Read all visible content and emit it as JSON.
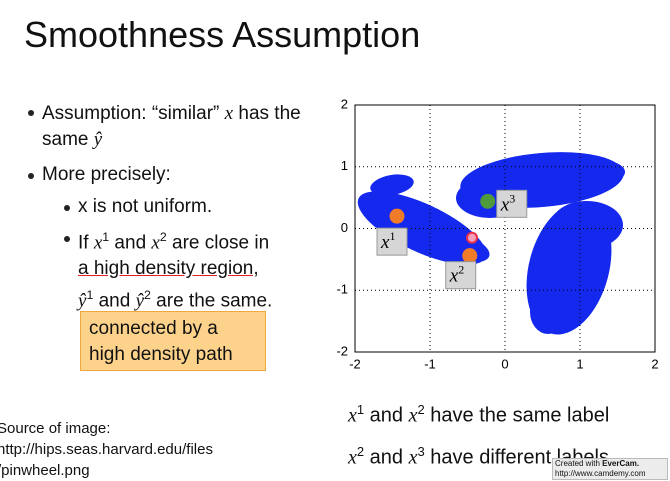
{
  "title": "Smoothness Assumption",
  "bullets": [
    [
      "Assumption: “similar” ",
      "x",
      " has the same ",
      "ŷ"
    ],
    [
      "More precisely:"
    ]
  ],
  "sub_bullets": [
    [
      "x is not uniform."
    ],
    [
      "If ",
      "x",
      "1",
      " and ",
      "x",
      "2",
      " are close in",
      "a high density region,",
      "ŷ",
      "1",
      " and ",
      "ŷ",
      "2",
      " are the same."
    ]
  ],
  "callout": "connected by a high density path",
  "source": [
    "Source of image:",
    "http://hips.seas.harvard.edu/files",
    "/pinwheel.png"
  ],
  "statements": [
    [
      "x",
      "1",
      " and ",
      "x",
      "2",
      " have the same label"
    ],
    [
      "x",
      "2",
      " and ",
      "x",
      "3",
      " have different labels"
    ]
  ],
  "watermark": [
    "Created with ",
    "EverCam.",
    "http://www.camdemy.com"
  ],
  "chart_data": {
    "type": "scatter",
    "xlim": [
      -2,
      2
    ],
    "ylim": [
      -2,
      2
    ],
    "xticks": [
      -2,
      -1,
      0,
      1,
      2
    ],
    "yticks": [
      -2,
      -1,
      0,
      1,
      2
    ],
    "grid": true,
    "points": {
      "x": [
        -1.44,
        -0.47,
        -0.23
      ],
      "y": [
        0.2,
        -0.44,
        0.44
      ],
      "colors": [
        "#f07c2a",
        "#f07c2a",
        "#4f9a3a"
      ],
      "labels": [
        [
          "x",
          "1"
        ],
        [
          "x",
          "2"
        ],
        [
          "x",
          "3"
        ]
      ]
    },
    "marker": {
      "x": -0.44,
      "y": -0.15,
      "color": "#e8304a"
    }
  }
}
